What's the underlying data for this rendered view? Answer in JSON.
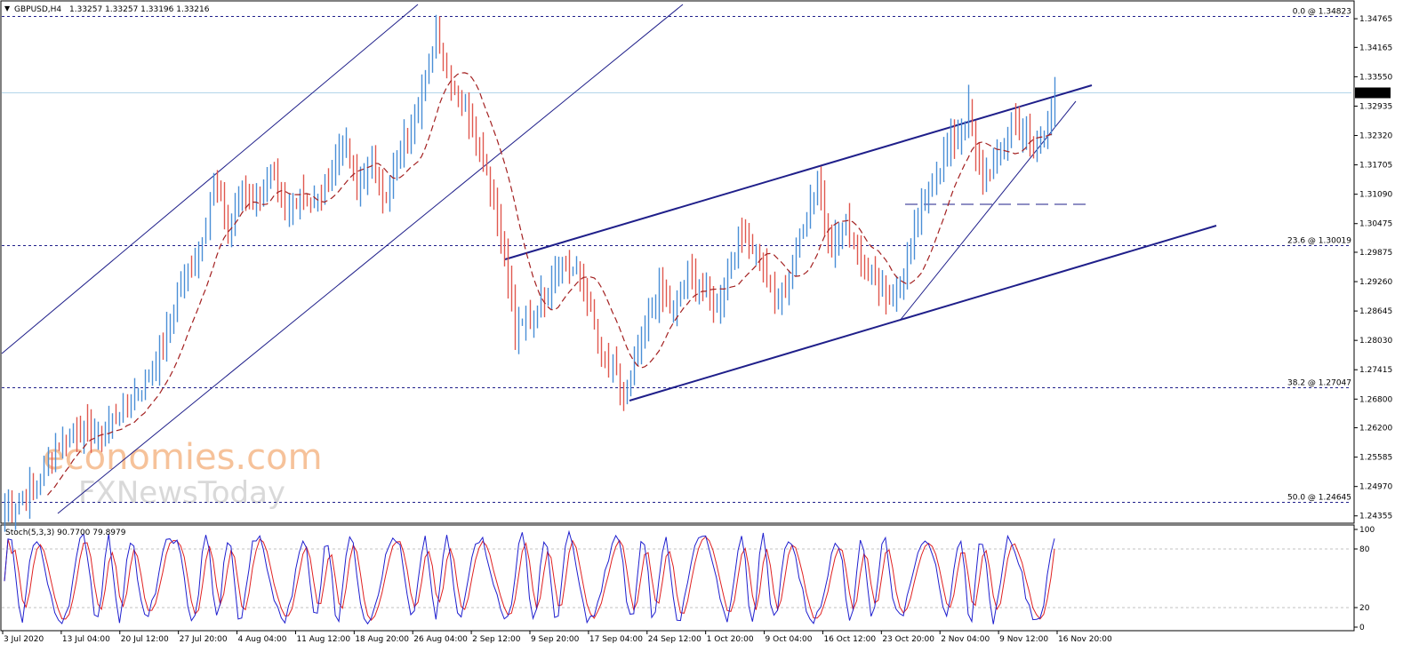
{
  "chart_header": {
    "symbol_label": "GBPUSD,H4",
    "ohlc_text": "1.33257 1.33257 1.33196 1.33216",
    "stoch_label": "Stoch(5,3,3) 90.7700 79.8979"
  },
  "watermark": {
    "line1": "economies.com",
    "line2": "FXNewsToday"
  },
  "colors": {
    "bull": "#4a8fd6",
    "bear": "#e0584f",
    "ma": "#a32020",
    "channel": "#1f1f8a",
    "current_line": "#b3d6ea",
    "stoch_main": "#1f1fcf",
    "stoch_signal": "#e02020"
  },
  "chart_data": {
    "type": "candlestick",
    "timeframe": "H4",
    "price_axis_ticks": [
      "1.34765",
      "1.34165",
      "1.33550",
      "1.32935",
      "1.32320",
      "1.31705",
      "1.31090",
      "1.30475",
      "1.29875",
      "1.29260",
      "1.28645",
      "1.28030",
      "1.27415",
      "1.26800",
      "1.26200",
      "1.25585",
      "1.24970",
      "1.24355"
    ],
    "price_axis_values": [
      1.34765,
      1.34165,
      1.3355,
      1.32935,
      1.3232,
      1.31705,
      1.3109,
      1.30475,
      1.29875,
      1.2926,
      1.28645,
      1.2803,
      1.27415,
      1.268,
      1.262,
      1.25585,
      1.2497,
      1.24355
    ],
    "ylim": [
      1.2422,
      1.3512
    ],
    "current_price": "1.33216",
    "current_price_value": 1.33216,
    "fib_levels": [
      {
        "label": "0.0 @ 1.34823",
        "value": 1.34823
      },
      {
        "label": "23.6 @ 1.30019",
        "value": 1.30019
      },
      {
        "label": "38.2 @ 1.27047",
        "value": 1.27047
      },
      {
        "label": "50.0 @ 1.24645",
        "value": 1.24645
      }
    ],
    "x_axis_labels": [
      "3 Jul 2020",
      "13 Jul 04:00",
      "20 Jul 12:00",
      "27 Jul 20:00",
      "4 Aug 04:00",
      "11 Aug 12:00",
      "18 Aug 20:00",
      "26 Aug 04:00",
      "2 Sep 12:00",
      "9 Sep 20:00",
      "17 Sep 04:00",
      "24 Sep 12:00",
      "1 Oct 20:00",
      "9 Oct 04:00",
      "16 Oct 12:00",
      "23 Oct 20:00",
      "2 Nov 04:00",
      "9 Nov 12:00",
      "16 Nov 20:00"
    ],
    "price_path_anchors": [
      [
        0,
        1.2445
      ],
      [
        8,
        1.249
      ],
      [
        14,
        1.258
      ],
      [
        20,
        1.262
      ],
      [
        26,
        1.26
      ],
      [
        32,
        1.265
      ],
      [
        38,
        1.27
      ],
      [
        44,
        1.279
      ],
      [
        48,
        1.29
      ],
      [
        54,
        1.299
      ],
      [
        58,
        1.313
      ],
      [
        62,
        1.304
      ],
      [
        66,
        1.312
      ],
      [
        70,
        1.309
      ],
      [
        74,
        1.315
      ],
      [
        78,
        1.306
      ],
      [
        82,
        1.312
      ],
      [
        86,
        1.308
      ],
      [
        90,
        1.314
      ],
      [
        94,
        1.323
      ],
      [
        98,
        1.312
      ],
      [
        102,
        1.318
      ],
      [
        106,
        1.31
      ],
      [
        110,
        1.32
      ],
      [
        114,
        1.328
      ],
      [
        118,
        1.337
      ],
      [
        120,
        1.347
      ],
      [
        122,
        1.339
      ],
      [
        126,
        1.331
      ],
      [
        130,
        1.326
      ],
      [
        134,
        1.316
      ],
      [
        138,
        1.302
      ],
      [
        140,
        1.293
      ],
      [
        142,
        1.282
      ],
      [
        146,
        1.285
      ],
      [
        150,
        1.29
      ],
      [
        154,
        1.297
      ],
      [
        158,
        1.295
      ],
      [
        162,
        1.29
      ],
      [
        166,
        1.276
      ],
      [
        170,
        1.273
      ],
      [
        172,
        1.269
      ],
      [
        174,
        1.272
      ],
      [
        178,
        1.283
      ],
      [
        182,
        1.29
      ],
      [
        186,
        1.286
      ],
      [
        190,
        1.294
      ],
      [
        194,
        1.292
      ],
      [
        198,
        1.287
      ],
      [
        202,
        1.298
      ],
      [
        206,
        1.303
      ],
      [
        210,
        1.298
      ],
      [
        214,
        1.288
      ],
      [
        218,
        1.293
      ],
      [
        222,
        1.305
      ],
      [
        226,
        1.313
      ],
      [
        230,
        1.3
      ],
      [
        234,
        1.304
      ],
      [
        238,
        1.298
      ],
      [
        242,
        1.293
      ],
      [
        246,
        1.289
      ],
      [
        250,
        1.294
      ],
      [
        254,
        1.305
      ],
      [
        258,
        1.314
      ],
      [
        262,
        1.32
      ],
      [
        266,
        1.325
      ],
      [
        268,
        1.3285
      ],
      [
        270,
        1.318
      ],
      [
        272,
        1.313
      ],
      [
        276,
        1.319
      ],
      [
        280,
        1.326
      ],
      [
        284,
        1.324
      ],
      [
        286,
        1.319
      ],
      [
        288,
        1.3215
      ],
      [
        290,
        1.3265
      ],
      [
        292,
        1.3322
      ]
    ],
    "stochastic": {
      "name": "Stoch(5,3,3)",
      "main_value": "90.7700",
      "signal_value": "79.8979",
      "levels": [
        20,
        80
      ],
      "axis_ticks": [
        "100",
        "80",
        "20",
        "0"
      ],
      "ylim": [
        0,
        100
      ]
    }
  }
}
